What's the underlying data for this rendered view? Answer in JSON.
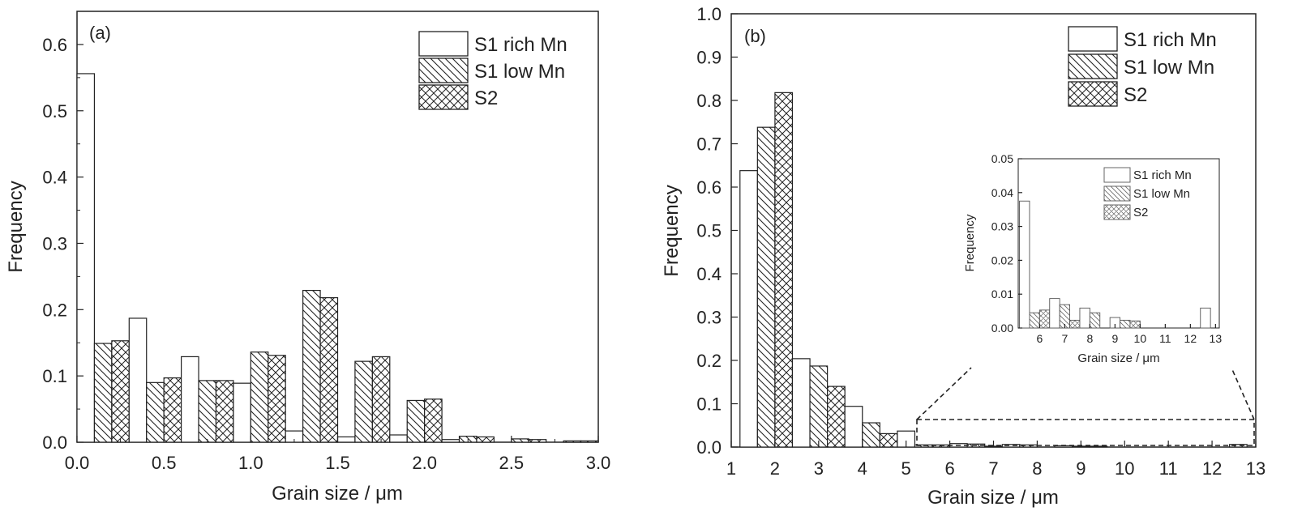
{
  "chart_data": [
    {
      "type": "bar",
      "panel_label": "(a)",
      "xlabel": "Grain size / μm",
      "ylabel": "Frequency",
      "xlim": [
        0,
        3
      ],
      "ylim": [
        0,
        0.65
      ],
      "x_ticks": [
        "0.0",
        "0.5",
        "1.0",
        "1.5",
        "2.0",
        "2.5",
        "3.0"
      ],
      "y_ticks": [
        "0.0",
        "0.1",
        "0.2",
        "0.3",
        "0.4",
        "0.5",
        "0.6"
      ],
      "bin_width": 0.3,
      "bin_starts": [
        0,
        0.3,
        0.6,
        0.9,
        1.2,
        1.5,
        1.8,
        2.1,
        2.4,
        2.7
      ],
      "legend_position": "top-right",
      "series": [
        {
          "name": "S1 rich Mn",
          "pattern": "open",
          "values": [
            0.556,
            0.187,
            0.129,
            0.089,
            0.017,
            0.008,
            0.011,
            0.004,
            0.0,
            0.0
          ]
        },
        {
          "name": "S1 low Mn",
          "pattern": "diagonal",
          "values": [
            0.149,
            0.09,
            0.093,
            0.136,
            0.229,
            0.122,
            0.063,
            0.009,
            0.005,
            0.002
          ]
        },
        {
          "name": "S2",
          "pattern": "crosshatch",
          "values": [
            0.153,
            0.097,
            0.093,
            0.131,
            0.218,
            0.129,
            0.065,
            0.008,
            0.004,
            0.002
          ]
        }
      ]
    },
    {
      "type": "bar",
      "panel_label": "(b)",
      "xlabel": "Grain size / μm",
      "ylabel": "Frequency",
      "xlim": [
        1,
        13
      ],
      "ylim": [
        0,
        1.0
      ],
      "x_ticks": [
        "1",
        "2",
        "3",
        "4",
        "5",
        "6",
        "7",
        "8",
        "9",
        "10",
        "11",
        "12",
        "13"
      ],
      "y_ticks": [
        "0.0",
        "0.1",
        "0.2",
        "0.3",
        "0.4",
        "0.5",
        "0.6",
        "0.7",
        "0.8",
        "0.9",
        "1.0"
      ],
      "bin_width": 1.2,
      "bin_starts": [
        1.2,
        2.4,
        3.6,
        4.8,
        6.0,
        7.2,
        8.4,
        9.6,
        10.8,
        12.0
      ],
      "legend_position": "top-right",
      "series": [
        {
          "name": "S1 rich Mn",
          "pattern": "open",
          "values": [
            0.638,
            0.204,
            0.094,
            0.037,
            0.008,
            0.006,
            0.003,
            0.0,
            0.0,
            0.0
          ]
        },
        {
          "name": "S1 low Mn",
          "pattern": "diagonal",
          "values": [
            0.738,
            0.187,
            0.056,
            0.005,
            0.007,
            0.005,
            0.002,
            0.0,
            0.0,
            0.006
          ]
        },
        {
          "name": "S2",
          "pattern": "crosshatch",
          "values": [
            0.818,
            0.14,
            0.031,
            0.005,
            0.002,
            0.0,
            0.002,
            0.0,
            0.0,
            0.0
          ]
        }
      ],
      "inset": {
        "xlabel": "Grain size / μm",
        "ylabel": "Frequency",
        "xlim": [
          5.15,
          13.15
        ],
        "ylim": [
          0,
          0.05
        ],
        "x_ticks": [
          "6",
          "7",
          "8",
          "9",
          "10",
          "11",
          "12",
          "13"
        ],
        "y_ticks": [
          "0.00",
          "0.01",
          "0.02",
          "0.03",
          "0.04",
          "0.05"
        ],
        "bin_width": 1.2,
        "bin_starts": [
          5.2,
          6.4,
          7.6,
          8.8,
          10.0,
          11.2,
          12.4
        ],
        "legend_position": "top-right",
        "series": [
          {
            "name": "S1 rich Mn",
            "pattern": "open",
            "values": [
              0.0375,
              0.0087,
              0.0059,
              0.0031,
              0.0,
              0.0,
              0.0059
            ]
          },
          {
            "name": "S1 low Mn",
            "pattern": "diagonal",
            "values": [
              0.0045,
              0.0069,
              0.0045,
              0.0023,
              0.0,
              0.0,
              0.0
            ]
          },
          {
            "name": "S2",
            "pattern": "crosshatch",
            "values": [
              0.0053,
              0.0023,
              0.0,
              0.0021,
              0.0,
              0.0,
              0.0
            ]
          }
        ]
      }
    }
  ]
}
